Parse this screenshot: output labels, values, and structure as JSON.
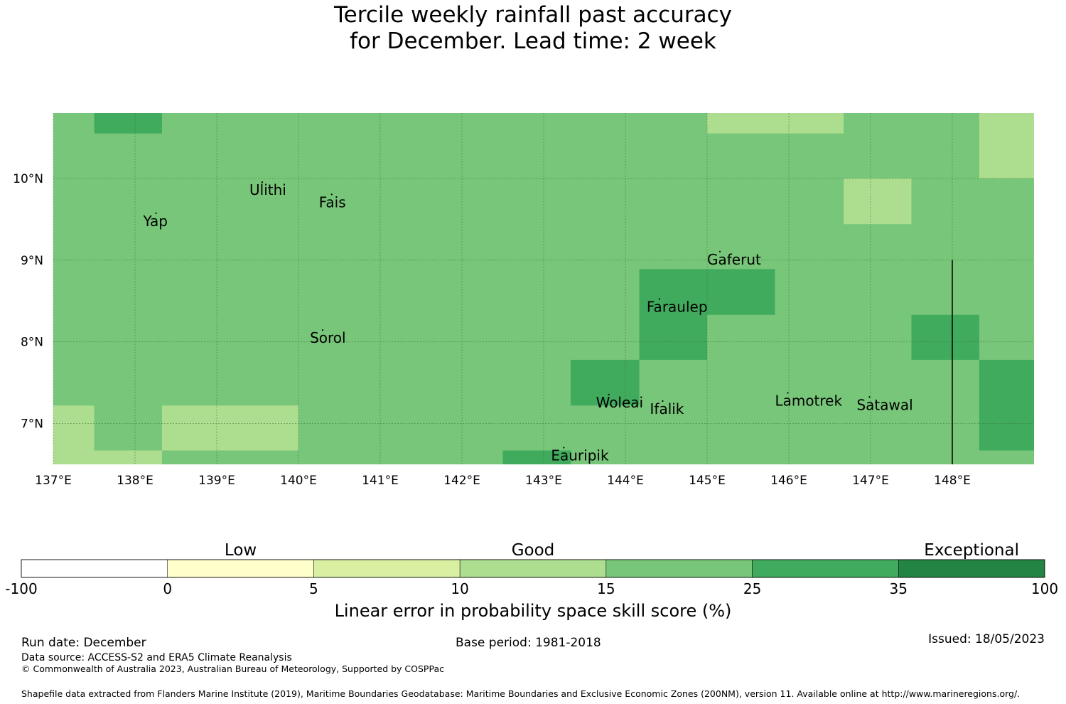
{
  "title": {
    "line1": "Tercile weekly rainfall past accuracy",
    "line2": "for December. Lead time: 2 week"
  },
  "map": {
    "lon_range": [
      137,
      149
    ],
    "lat_range": [
      6.5,
      10.8
    ],
    "x_ticks": [
      137,
      138,
      139,
      140,
      141,
      142,
      143,
      144,
      145,
      146,
      147,
      148
    ],
    "x_tick_labels": [
      "137°E",
      "138°E",
      "139°E",
      "140°E",
      "141°E",
      "142°E",
      "143°E",
      "144°E",
      "145°E",
      "146°E",
      "147°E",
      "148°E"
    ],
    "y_ticks": [
      7,
      8,
      9,
      10
    ],
    "y_tick_labels": [
      "7°N",
      "8°N",
      "9°N",
      "10°N"
    ],
    "background_color": "#78c679",
    "cells": [
      {
        "lon0": 137.5,
        "lon1": 138.33,
        "lat0": 10.55,
        "lat1": 10.8,
        "color": "#41ab5d"
      },
      {
        "lon0": 145.0,
        "lon1": 146.67,
        "lat0": 10.55,
        "lat1": 10.8,
        "color": "#addd8e"
      },
      {
        "lon0": 148.33,
        "lon1": 149.0,
        "lat0": 10.0,
        "lat1": 10.8,
        "color": "#addd8e"
      },
      {
        "lon0": 146.67,
        "lon1": 147.5,
        "lat0": 9.44,
        "lat1": 10.0,
        "color": "#addd8e"
      },
      {
        "lon0": 144.17,
        "lon1": 145.0,
        "lat0": 7.78,
        "lat1": 8.89,
        "color": "#41ab5d"
      },
      {
        "lon0": 145.0,
        "lon1": 145.83,
        "lat0": 8.33,
        "lat1": 8.89,
        "color": "#41ab5d"
      },
      {
        "lon0": 147.5,
        "lon1": 148.33,
        "lat0": 7.78,
        "lat1": 8.33,
        "color": "#41ab5d"
      },
      {
        "lon0": 143.33,
        "lon1": 144.17,
        "lat0": 7.22,
        "lat1": 7.78,
        "color": "#41ab5d"
      },
      {
        "lon0": 148.33,
        "lon1": 149.0,
        "lat0": 6.67,
        "lat1": 7.78,
        "color": "#41ab5d"
      },
      {
        "lon0": 137.0,
        "lon1": 137.5,
        "lat0": 6.5,
        "lat1": 7.22,
        "color": "#addd8e"
      },
      {
        "lon0": 137.5,
        "lon1": 138.33,
        "lat0": 6.5,
        "lat1": 6.67,
        "color": "#addd8e"
      },
      {
        "lon0": 138.33,
        "lon1": 140.0,
        "lat0": 6.67,
        "lat1": 7.22,
        "color": "#addd8e"
      },
      {
        "lon0": 142.5,
        "lon1": 143.33,
        "lat0": 6.5,
        "lat1": 6.67,
        "color": "#41ab5d"
      }
    ],
    "boundary_line": {
      "lon": 148.0,
      "lat0": 6.5,
      "lat1": 9.0
    },
    "places": [
      {
        "name": "Ulithi",
        "lon": 139.4,
        "lat": 9.85
      },
      {
        "name": "Fais",
        "lon": 140.25,
        "lat": 9.7
      },
      {
        "name": "Yap",
        "lon": 138.1,
        "lat": 9.47
      },
      {
        "name": "Gaferut",
        "lon": 145.0,
        "lat": 9.0
      },
      {
        "name": "Faraulep",
        "lon": 144.26,
        "lat": 8.42
      },
      {
        "name": "Sorol",
        "lon": 140.14,
        "lat": 8.04
      },
      {
        "name": "Woleai",
        "lon": 143.64,
        "lat": 7.25
      },
      {
        "name": "Ifalik",
        "lon": 144.3,
        "lat": 7.17
      },
      {
        "name": "Lamotrek",
        "lon": 145.83,
        "lat": 7.27
      },
      {
        "name": "Satawal",
        "lon": 146.83,
        "lat": 7.22
      },
      {
        "name": "Eauripik",
        "lon": 143.09,
        "lat": 6.6
      }
    ]
  },
  "colorbar": {
    "categories": [
      {
        "label": "Low",
        "position": 1
      },
      {
        "label": "Good",
        "position": 3
      },
      {
        "label": "Exceptional",
        "position": 6
      }
    ],
    "bins": [
      {
        "from": "-100",
        "to": "0",
        "color": "#ffffff"
      },
      {
        "from": "0",
        "to": "5",
        "color": "#ffffcc"
      },
      {
        "from": "5",
        "to": "10",
        "color": "#d9f0a3"
      },
      {
        "from": "10",
        "to": "15",
        "color": "#addd8e"
      },
      {
        "from": "15",
        "to": "25",
        "color": "#78c679"
      },
      {
        "from": "25",
        "to": "35",
        "color": "#41ab5d"
      },
      {
        "from": "35",
        "to": "100",
        "color": "#238443"
      }
    ],
    "tick_labels": [
      "-100",
      "0",
      "5",
      "10",
      "15",
      "25",
      "35",
      "100"
    ],
    "label": "Linear error in probability space skill score (%)"
  },
  "footer": {
    "run_date": "Run date: December",
    "base_period": "Base period: 1981-2018",
    "issued": "Issued: 18/05/2023",
    "data_source": "Data source: ACCESS-S2 and ERA5 Climate Reanalysis",
    "copyright": "© Commonwealth of Australia 2023, Australian Bureau of Meteorology, Supported by COSPPac",
    "shapefile": "Shapefile data extracted from Flanders Marine Institute (2019), Maritime Boundaries Geodatabase: Maritime Boundaries and Exclusive Economic Zones (200NM), version 11. Available online at http://www.marineregions.org/."
  }
}
